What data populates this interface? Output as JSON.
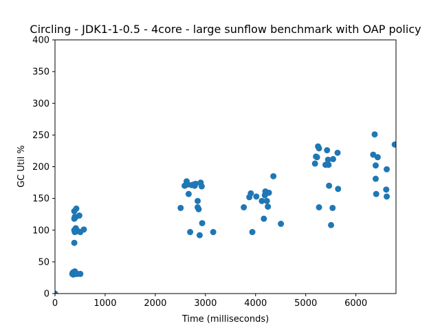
{
  "chart_data": {
    "type": "scatter",
    "title": "Circling - JDK1-1-0.5 - 4core -  large sunflow benchmark with OAP policy",
    "xlabel": "Time (milliseconds)",
    "ylabel": "GC Util %",
    "xlim": [
      0,
      6800
    ],
    "ylim": [
      0,
      400
    ],
    "xticks": [
      "0",
      "1000",
      "2000",
      "3000",
      "4000",
      "5000",
      "6000"
    ],
    "xtick_values": [
      0,
      1000,
      2000,
      3000,
      4000,
      5000,
      6000
    ],
    "yticks": [
      "0",
      "50",
      "100",
      "150",
      "200",
      "250",
      "300",
      "350",
      "400"
    ],
    "ytick_values": [
      0,
      50,
      100,
      150,
      200,
      250,
      300,
      350,
      400
    ],
    "grid": false,
    "color": "#1f77b4",
    "points": [
      [
        0,
        0
      ],
      [
        345,
        31
      ],
      [
        355,
        33
      ],
      [
        365,
        30
      ],
      [
        375,
        34
      ],
      [
        385,
        32
      ],
      [
        395,
        35
      ],
      [
        405,
        33
      ],
      [
        415,
        31
      ],
      [
        425,
        32
      ],
      [
        440,
        31
      ],
      [
        505,
        31
      ],
      [
        385,
        80
      ],
      [
        385,
        100
      ],
      [
        395,
        97
      ],
      [
        405,
        101
      ],
      [
        415,
        103
      ],
      [
        425,
        98
      ],
      [
        445,
        99
      ],
      [
        505,
        97
      ],
      [
        575,
        101
      ],
      [
        385,
        118
      ],
      [
        395,
        121
      ],
      [
        405,
        120
      ],
      [
        485,
        123
      ],
      [
        385,
        130
      ],
      [
        425,
        134
      ],
      [
        2505,
        135
      ],
      [
        2585,
        170
      ],
      [
        2625,
        177
      ],
      [
        2645,
        172
      ],
      [
        2665,
        157
      ],
      [
        2695,
        97
      ],
      [
        2725,
        171
      ],
      [
        2765,
        172
      ],
      [
        2785,
        170
      ],
      [
        2805,
        173
      ],
      [
        2845,
        146
      ],
      [
        2845,
        136
      ],
      [
        2865,
        133
      ],
      [
        2885,
        92
      ],
      [
        2905,
        175
      ],
      [
        2925,
        169
      ],
      [
        2935,
        111
      ],
      [
        3155,
        97
      ],
      [
        3765,
        136
      ],
      [
        3875,
        152
      ],
      [
        3905,
        158
      ],
      [
        3935,
        97
      ],
      [
        4015,
        153
      ],
      [
        4125,
        146
      ],
      [
        4165,
        118
      ],
      [
        4185,
        155
      ],
      [
        4195,
        161
      ],
      [
        4215,
        159
      ],
      [
        4225,
        146
      ],
      [
        4245,
        137
      ],
      [
        4265,
        159
      ],
      [
        4355,
        185
      ],
      [
        4505,
        110
      ],
      [
        5185,
        205
      ],
      [
        5205,
        216
      ],
      [
        5225,
        215
      ],
      [
        5245,
        232
      ],
      [
        5265,
        136
      ],
      [
        5265,
        229
      ],
      [
        5395,
        203
      ],
      [
        5425,
        226
      ],
      [
        5445,
        211
      ],
      [
        5455,
        203
      ],
      [
        5465,
        170
      ],
      [
        5505,
        108
      ],
      [
        5535,
        135
      ],
      [
        5545,
        212
      ],
      [
        5635,
        222
      ],
      [
        5645,
        165
      ],
      [
        6345,
        219
      ],
      [
        6375,
        251
      ],
      [
        6395,
        181
      ],
      [
        6395,
        202
      ],
      [
        6405,
        157
      ],
      [
        6435,
        215
      ],
      [
        6605,
        164
      ],
      [
        6615,
        196
      ],
      [
        6615,
        153
      ],
      [
        6775,
        235
      ]
    ]
  }
}
